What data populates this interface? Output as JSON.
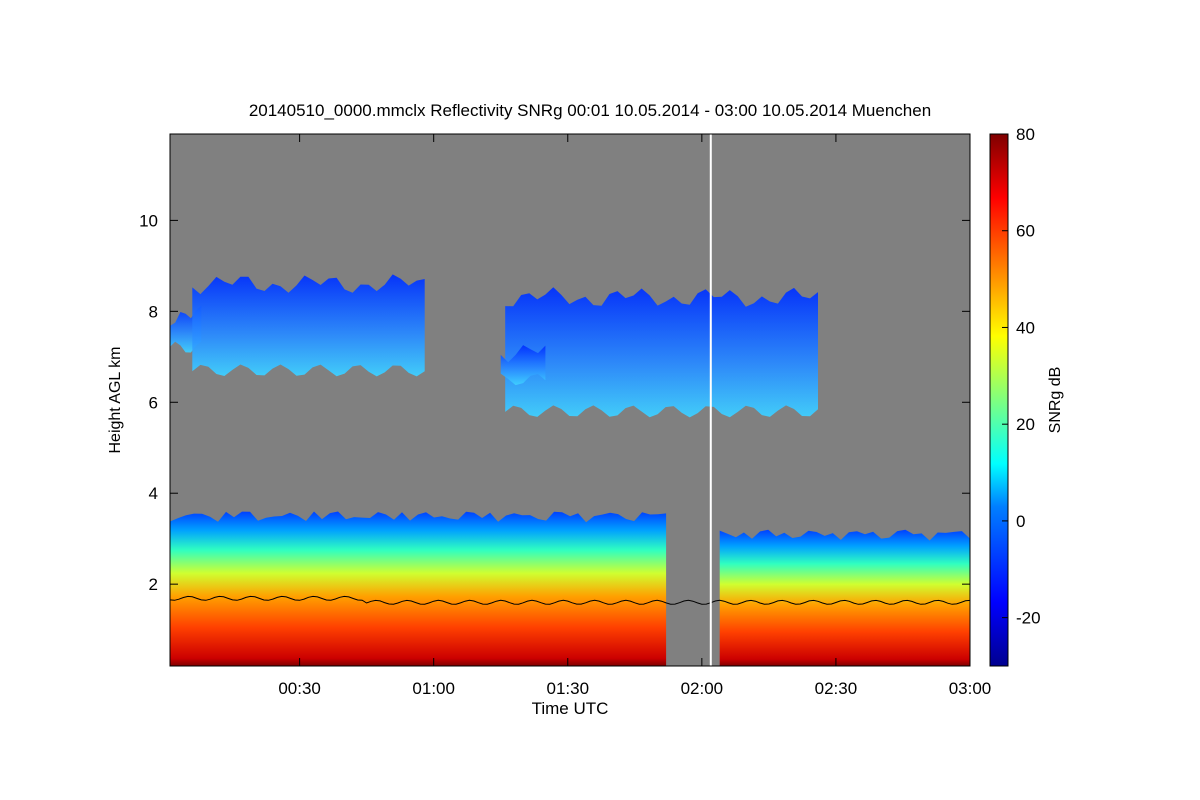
{
  "chart_data": {
    "type": "heatmap",
    "title": "20140510_0000.mmclx Reflectivity SNRg   00:01 10.05.2014 - 03:00 10.05.2014 Muenchen",
    "xlabel": "Time UTC",
    "ylabel": "Height AGL km",
    "xlim_minutes": [
      1,
      180
    ],
    "ylim_km": [
      0.2,
      11.9
    ],
    "x_ticks": [
      {
        "label": "00:30",
        "minutes": 30
      },
      {
        "label": "01:00",
        "minutes": 60
      },
      {
        "label": "01:30",
        "minutes": 90
      },
      {
        "label": "02:00",
        "minutes": 120
      },
      {
        "label": "02:30",
        "minutes": 150
      },
      {
        "label": "03:00",
        "minutes": 180
      }
    ],
    "y_ticks": [
      {
        "label": "2",
        "km": 2
      },
      {
        "label": "4",
        "km": 4
      },
      {
        "label": "6",
        "km": 6
      },
      {
        "label": "8",
        "km": 8
      },
      {
        "label": "10",
        "km": 10
      }
    ],
    "colorbar": {
      "label": "SNRg dB",
      "range": [
        -30,
        80
      ],
      "ticks": [
        {
          "label": "-20",
          "value": -20
        },
        {
          "label": "0",
          "value": 0
        },
        {
          "label": "20",
          "value": 20
        },
        {
          "label": "40",
          "value": 40
        },
        {
          "label": "60",
          "value": 60
        },
        {
          "label": "80",
          "value": 80
        }
      ]
    },
    "background_color": "#808080",
    "marker_line_minutes": 122,
    "regions": [
      {
        "name": "upper-cloud-left",
        "t_start": 1,
        "t_end": 8,
        "z_bottom": 7.2,
        "z_top": 7.9,
        "snr": -5
      },
      {
        "name": "upper-cloud-main-1",
        "t_start": 6,
        "t_end": 58,
        "z_bottom": 6.7,
        "z_top": 8.6,
        "snr": 0
      },
      {
        "name": "upper-cloud-main-2",
        "t_start": 76,
        "t_end": 146,
        "z_bottom": 5.8,
        "z_top": 8.3,
        "snr": 2
      },
      {
        "name": "upper-cloud-small",
        "t_start": 75,
        "t_end": 85,
        "z_bottom": 6.5,
        "z_top": 7.1,
        "snr": -5
      },
      {
        "name": "lower-precip-1",
        "t_start": 1,
        "t_end": 112,
        "z_bottom": 0.2,
        "z_top": 3.6,
        "snr": 40
      },
      {
        "name": "lower-precip-2",
        "t_start": 124,
        "t_end": 180,
        "z_bottom": 0.2,
        "z_top": 3.2,
        "snr": 38
      }
    ],
    "boundary_layer_height_km": 1.6
  }
}
